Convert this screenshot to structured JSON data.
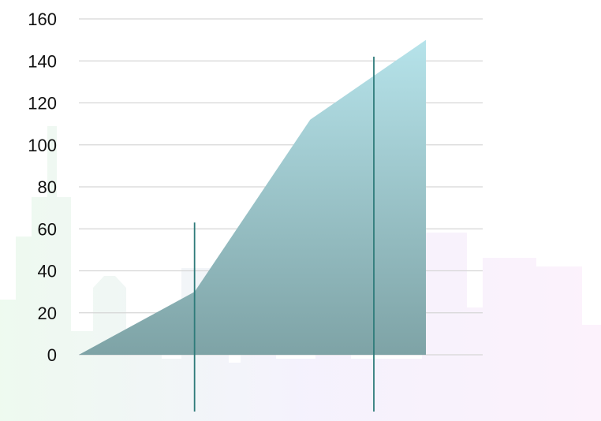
{
  "chart_data": {
    "type": "area",
    "title": "",
    "xlabel": "",
    "ylabel": "",
    "x": [
      0,
      1,
      2,
      3
    ],
    "values": [
      0,
      30,
      112,
      150
    ],
    "y_ticks": [
      0,
      20,
      40,
      60,
      80,
      100,
      120,
      140,
      160
    ],
    "ylim": [
      0,
      160
    ],
    "grid": true,
    "legend": "none",
    "vertical_markers": [
      {
        "x": 1,
        "top_value": 63
      },
      {
        "x": 2.55,
        "top_value": 142
      }
    ],
    "colors": {
      "area_top": "#b6e3ea",
      "area_bottom": "#7ea3a6",
      "marker": "#2e7b7a",
      "grid": "#d6d6d6"
    }
  }
}
